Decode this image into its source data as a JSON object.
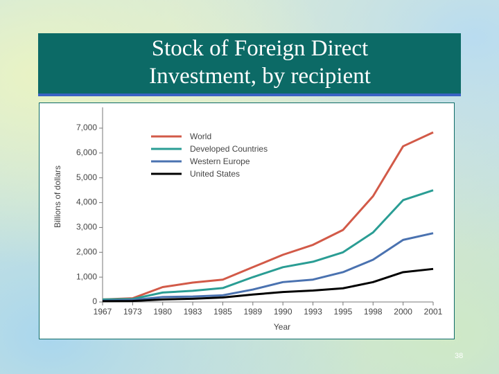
{
  "slide": {
    "title": "Stock of Foreign Direct Investment, by recipient",
    "page_number": "38"
  },
  "chart_data": {
    "type": "line",
    "x_label": "Year",
    "y_label": "Billions of dollars",
    "categories": [
      "1967",
      "1973",
      "1980",
      "1983",
      "1985",
      "1989",
      "1990",
      "1993",
      "1995",
      "1998",
      "2000",
      "2001"
    ],
    "series": [
      {
        "name": "World",
        "color": "#d25a48",
        "values": [
          100,
          150,
          600,
          780,
          900,
          1400,
          1900,
          2300,
          2900,
          4260,
          6270,
          6830
        ]
      },
      {
        "name": "Developed Countries",
        "color": "#2a9d94",
        "values": [
          100,
          120,
          380,
          450,
          560,
          1000,
          1400,
          1620,
          2000,
          2800,
          4100,
          4500
        ]
      },
      {
        "name": "Western Europe",
        "color": "#4a72b0",
        "values": [
          50,
          80,
          200,
          220,
          270,
          500,
          800,
          900,
          1200,
          1700,
          2500,
          2770
        ]
      },
      {
        "name": "United States",
        "color": "#000000",
        "values": [
          30,
          40,
          100,
          130,
          180,
          300,
          400,
          460,
          550,
          800,
          1200,
          1330
        ]
      }
    ],
    "ylim": [
      0,
      7000
    ],
    "yticks": [
      0,
      {
        "value": 1000,
        "label": "1,000"
      },
      {
        "value": 2000,
        "label": "2,000"
      },
      {
        "value": 3000,
        "label": "3,000"
      },
      {
        "value": 4000,
        "label": "4,000"
      },
      {
        "value": 5000,
        "label": "5,000"
      },
      {
        "value": 6000,
        "label": "6,000"
      },
      {
        "value": 7000,
        "label": "7,000"
      }
    ],
    "grid": false,
    "legend": "upper-left"
  }
}
